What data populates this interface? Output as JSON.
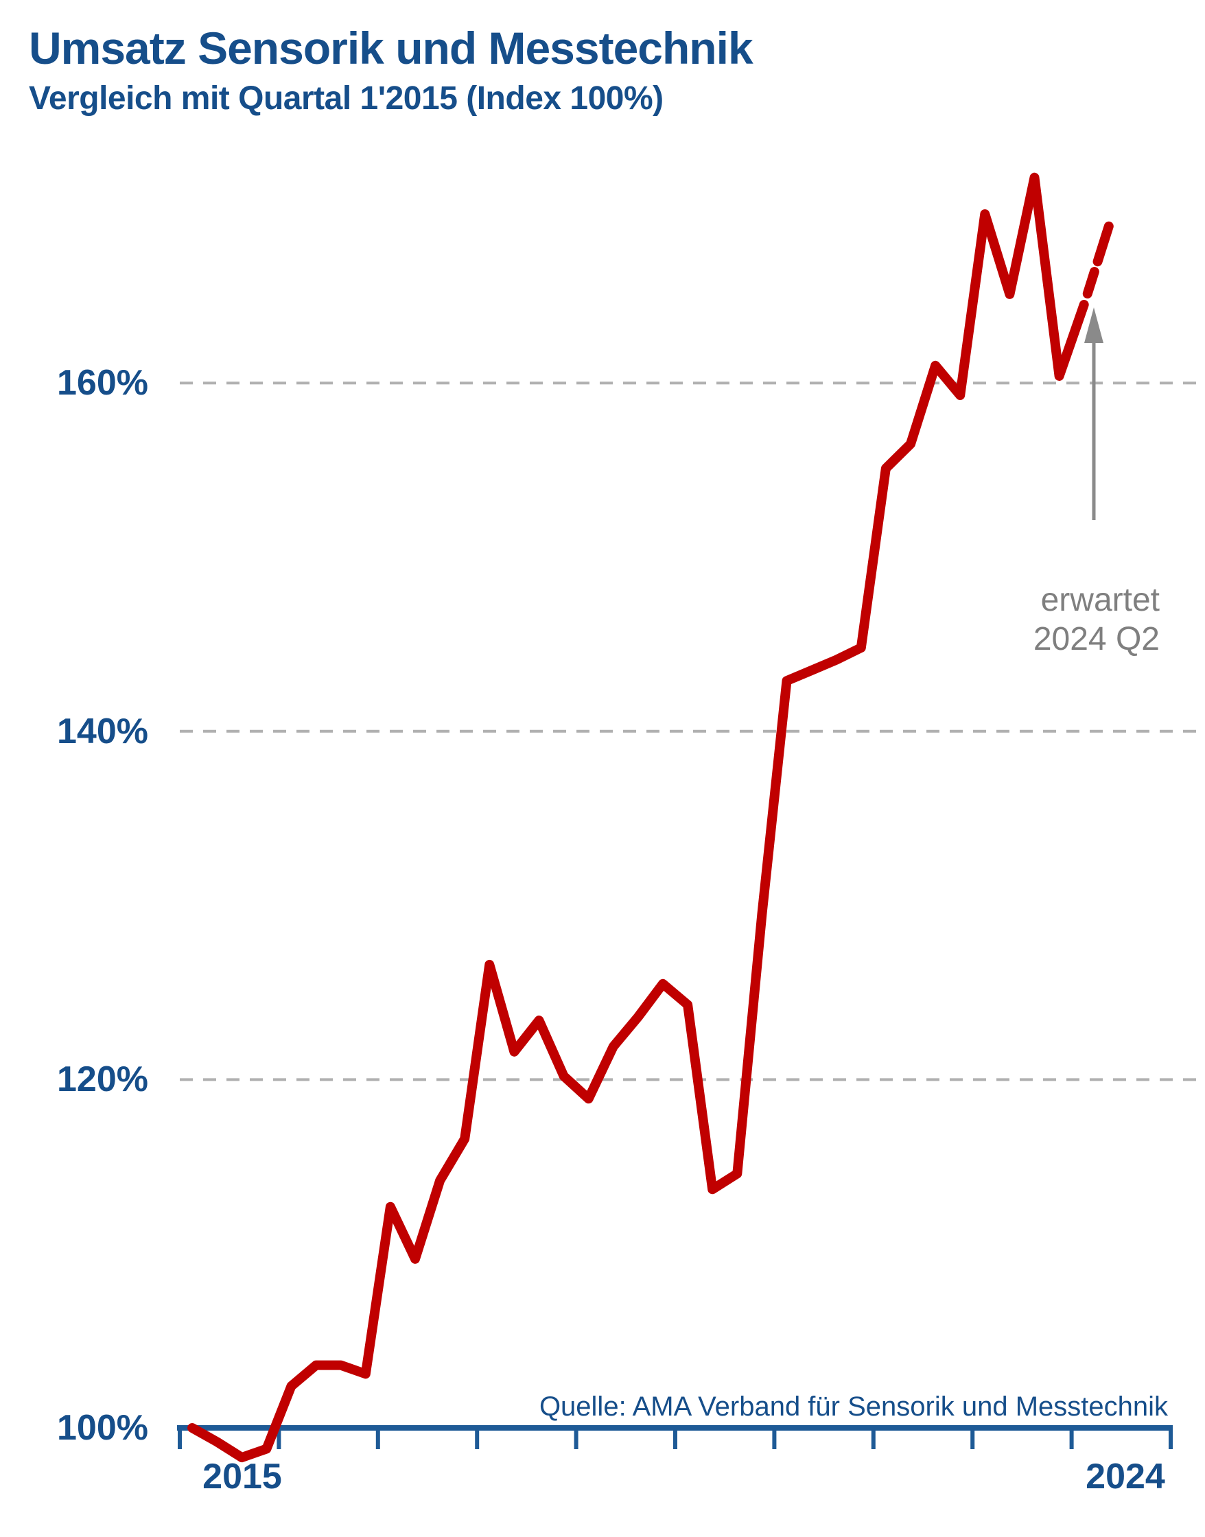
{
  "header": {
    "title": "Umsatz Sensorik und Messtechnik",
    "subtitle": "Vergleich mit Quartal 1'2015 (Index 100%)"
  },
  "source": {
    "label": "Quelle: AMA Verband für Sensorik und Messtechnik"
  },
  "annotation": {
    "line1": "erwartet",
    "line2": "2024 Q2",
    "has_arrow": true
  },
  "colors": {
    "line_red": "#C00000",
    "text_blue": "#164E8A",
    "axis_blue": "#1E5A96",
    "grid_gray": "#B0B0B0",
    "annotation_gray": "#7F7F7F",
    "arrow_gray": "#8A8A8A",
    "background": "#FFFFFF"
  },
  "chart_data": {
    "type": "line",
    "title": "Umsatz Sensorik und Messtechnik",
    "subtitle": "Vergleich mit Quartal 1'2015 (Index 100%)",
    "unit": "% (Index, 2015 Q1 = 100%)",
    "grid": "dashed horizontal gridlines at 120%, 140%, 160%; solid blue baseline at 100%",
    "legend_position": "none",
    "y_axis": {
      "ticks": [
        100,
        120,
        140,
        160
      ],
      "tick_labels": [
        "100%",
        "120%",
        "140%",
        "160%"
      ],
      "range": [
        97,
        174
      ]
    },
    "x_axis": {
      "visible_labels": [
        "2015",
        "2024"
      ],
      "year_tick_count": 11,
      "quarters_per_year": 4
    },
    "series": [
      {
        "name": "Umsatz-Index Sensorik und Messtechnik",
        "x": [
          "2015 Q1",
          "2015 Q2",
          "2015 Q3",
          "2015 Q4",
          "2016 Q1",
          "2016 Q2",
          "2016 Q3",
          "2016 Q4",
          "2017 Q1",
          "2017 Q2",
          "2017 Q3",
          "2017 Q4",
          "2018 Q1",
          "2018 Q2",
          "2018 Q3",
          "2018 Q4",
          "2019 Q1",
          "2019 Q2",
          "2019 Q3",
          "2019 Q4",
          "2020 Q1",
          "2020 Q2",
          "2020 Q3",
          "2020 Q4",
          "2021 Q1",
          "2021 Q2",
          "2021 Q3",
          "2021 Q4",
          "2022 Q1",
          "2022 Q2",
          "2022 Q3",
          "2022 Q4",
          "2023 Q1",
          "2023 Q2",
          "2023 Q3",
          "2023 Q4",
          "2024 Q1",
          "2024 Q2"
        ],
        "values": [
          100.0,
          99.2,
          98.3,
          98.8,
          102.4,
          103.6,
          103.6,
          103.1,
          112.7,
          109.7,
          114.2,
          116.6,
          126.6,
          121.6,
          123.4,
          120.2,
          118.9,
          121.9,
          123.6,
          125.5,
          124.3,
          113.7,
          114.6,
          129.5,
          142.9,
          143.5,
          144.1,
          144.8,
          155.1,
          156.5,
          161.0,
          159.3,
          169.7,
          165.1,
          171.8,
          160.4,
          164.5,
          169.0
        ],
        "expected_from_index": 36,
        "note": "last segment (2024 Q1 to 2024 Q2) is dashed = expected value"
      }
    ]
  }
}
